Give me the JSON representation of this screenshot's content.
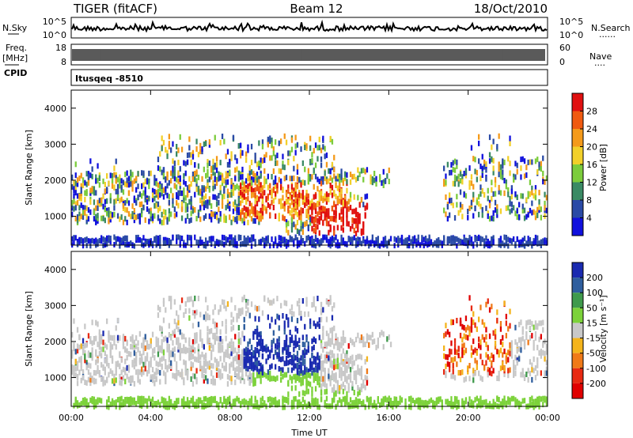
{
  "header": {
    "radar": "TIGER (fitACF)",
    "beam": "Beam 12",
    "date": "18/Oct/2010"
  },
  "labels": {
    "nsky": "N.Sky",
    "nsearch": "N.Search",
    "freq_line1": "Freq.",
    "freq_line2": "[MHz]",
    "cpid": "CPID",
    "nave": "Nave",
    "cpid_value": "Itusqeq -8510",
    "dots": "......",
    "dots_short": "...."
  },
  "noise_axis": {
    "left": [
      "10^5",
      "10^0"
    ],
    "right": [
      "10^5",
      "10^0"
    ]
  },
  "freq_axis": {
    "left": [
      "18",
      "8"
    ],
    "right": [
      "60",
      "0"
    ]
  },
  "chart_data": [
    {
      "type": "heatmap",
      "name": "power",
      "xlabel": "",
      "ylabel": "Slant Range [km]",
      "x_ticks": [
        "00:00",
        "04:00",
        "08:00",
        "12:00",
        "16:00",
        "20:00",
        "00:00"
      ],
      "y_ticks": [
        "1000",
        "2000",
        "3000",
        "4000"
      ],
      "ylim": [
        200,
        4500
      ],
      "colorbar": {
        "label": "Power [dB]",
        "ticks": [
          "28",
          "24",
          "20",
          "16",
          "12",
          "8",
          "4"
        ],
        "colors": [
          "#e01010",
          "#f05a10",
          "#f49a1a",
          "#f2d02a",
          "#7ccc3c",
          "#3a8a64",
          "#2a4aa6",
          "#1010dd"
        ]
      }
    },
    {
      "type": "heatmap",
      "name": "velocity",
      "xlabel": "Time UT",
      "ylabel": "Slant Range [km]",
      "x_ticks": [
        "00:00",
        "04:00",
        "08:00",
        "12:00",
        "16:00",
        "20:00",
        "00:00"
      ],
      "y_ticks": [
        "1000",
        "2000",
        "3000",
        "4000"
      ],
      "ylim": [
        200,
        4500
      ],
      "colorbar": {
        "label": "Velocity [m s⁻¹]",
        "ticks": [
          "200",
          "100",
          "50",
          "15",
          "-15",
          "-50",
          "-100",
          "-200"
        ],
        "colors": [
          "#1a2ab0",
          "#2f5e9e",
          "#3f9a4c",
          "#7cd23a",
          "#c8c8c8",
          "#f4b41c",
          "#f07a18",
          "#e82a12",
          "#e00000"
        ]
      }
    }
  ]
}
